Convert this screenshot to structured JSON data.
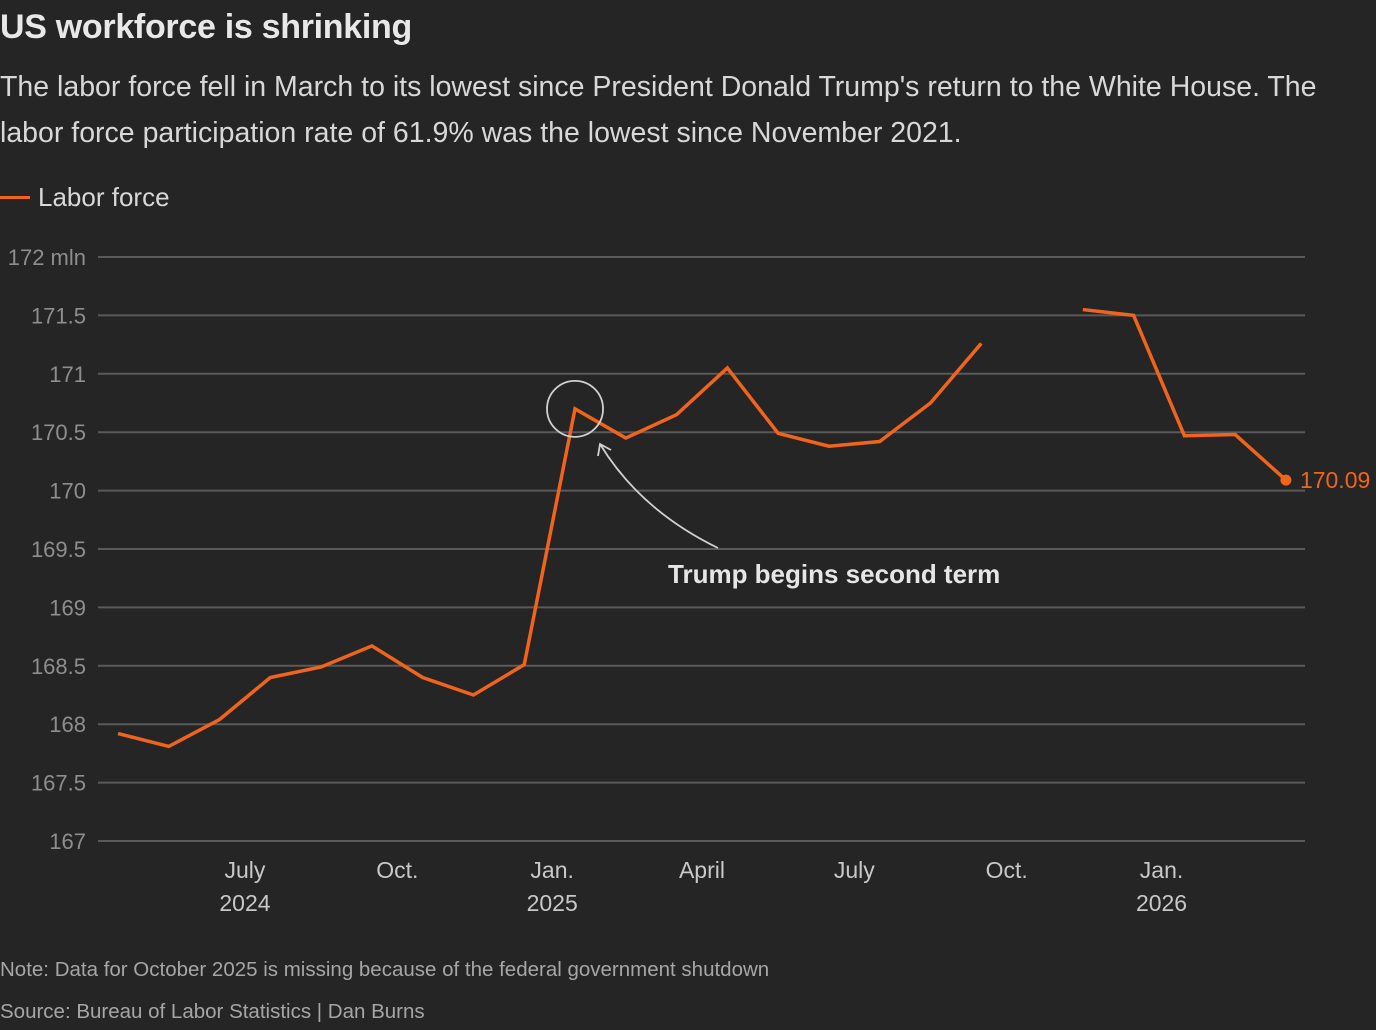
{
  "header": {
    "title": "US workforce is shrinking",
    "subtitle": "The labor force fell in March to its lowest since President Donald Trump's return to the White House. The labor force participation rate of 61.9% was the lowest since November 2021."
  },
  "legend": {
    "label": "Labor force",
    "color": "#f0641e"
  },
  "footer": {
    "note": "Note: Data for October 2025 is missing because of the federal government shutdown",
    "source": "Source: Bureau of Labor Statistics | Dan Burns"
  },
  "chart_data": {
    "type": "line",
    "title": "US workforce is shrinking",
    "xlabel": "",
    "ylabel": "Labor force (mln)",
    "ylim": [
      167,
      172
    ],
    "grid": true,
    "legend_position": "top-left",
    "y_ticks": [
      {
        "value": 172,
        "label": "172 mln"
      },
      {
        "value": 171.5,
        "label": "171.5"
      },
      {
        "value": 171,
        "label": "171"
      },
      {
        "value": 170.5,
        "label": "170.5"
      },
      {
        "value": 170,
        "label": "170"
      },
      {
        "value": 169.5,
        "label": "169.5"
      },
      {
        "value": 169,
        "label": "169"
      },
      {
        "value": 168.5,
        "label": "168.5"
      },
      {
        "value": 168,
        "label": "168"
      },
      {
        "value": 167.5,
        "label": "167.5"
      },
      {
        "value": 167,
        "label": "167"
      }
    ],
    "x_ticks": [
      {
        "index": 2.5,
        "label": "July",
        "sublabel": "2024"
      },
      {
        "index": 5.5,
        "label": "Oct.",
        "sublabel": ""
      },
      {
        "index": 8.55,
        "label": "Jan.",
        "sublabel": "2025"
      },
      {
        "index": 11.5,
        "label": "April",
        "sublabel": ""
      },
      {
        "index": 14.5,
        "label": "July",
        "sublabel": ""
      },
      {
        "index": 17.5,
        "label": "Oct.",
        "sublabel": ""
      },
      {
        "index": 20.55,
        "label": "Jan.",
        "sublabel": "2026"
      }
    ],
    "x": [
      "2024-04",
      "2024-05",
      "2024-06",
      "2024-07",
      "2024-08",
      "2024-09",
      "2024-10",
      "2024-11",
      "2024-12",
      "2025-01",
      "2025-02",
      "2025-03",
      "2025-04",
      "2025-05",
      "2025-06",
      "2025-07",
      "2025-08",
      "2025-09",
      "2025-10",
      "2025-11",
      "2025-12",
      "2026-01",
      "2026-02",
      "2026-03"
    ],
    "series": [
      {
        "name": "Labor force",
        "color": "#f0641e",
        "values": [
          167.92,
          167.81,
          168.04,
          168.4,
          168.49,
          168.67,
          168.4,
          168.25,
          168.51,
          170.7,
          170.45,
          170.65,
          171.05,
          170.49,
          170.38,
          170.42,
          170.75,
          171.26,
          null,
          171.55,
          171.5,
          170.47,
          170.48,
          170.09
        ]
      }
    ],
    "end_label": "170.09",
    "annotations": [
      {
        "text": "Trump begins second term",
        "target_index": 9,
        "marker": "circle"
      }
    ]
  }
}
